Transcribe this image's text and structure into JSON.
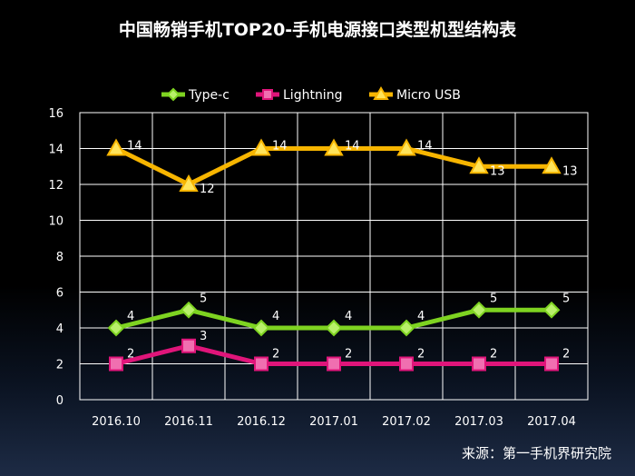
{
  "chart_data": {
    "type": "line",
    "title": "中国畅销手机TOP20-手机电源接口类型机型结构表",
    "categories": [
      "2016.10",
      "2016.11",
      "2016.12",
      "2017.01",
      "2017.02",
      "2017.03",
      "2017.04"
    ],
    "ylim": [
      0,
      16
    ],
    "yticks": [
      "0",
      "2",
      "4",
      "6",
      "8",
      "10",
      "12",
      "14",
      "16"
    ],
    "grid": true,
    "legend": "top",
    "series": [
      {
        "name": "Type-c",
        "values": [
          4,
          5,
          4,
          4,
          4,
          5,
          5
        ],
        "color": "#7ed321",
        "marker": "diamond"
      },
      {
        "name": "Lightning",
        "values": [
          2,
          3,
          2,
          2,
          2,
          2,
          2
        ],
        "color": "#e0157a",
        "marker": "square"
      },
      {
        "name": "Micro USB",
        "values": [
          14,
          12,
          14,
          14,
          14,
          13,
          13
        ],
        "color": "#f7b500",
        "marker": "triangle"
      }
    ]
  },
  "source": "来源：第一手机界研究院"
}
